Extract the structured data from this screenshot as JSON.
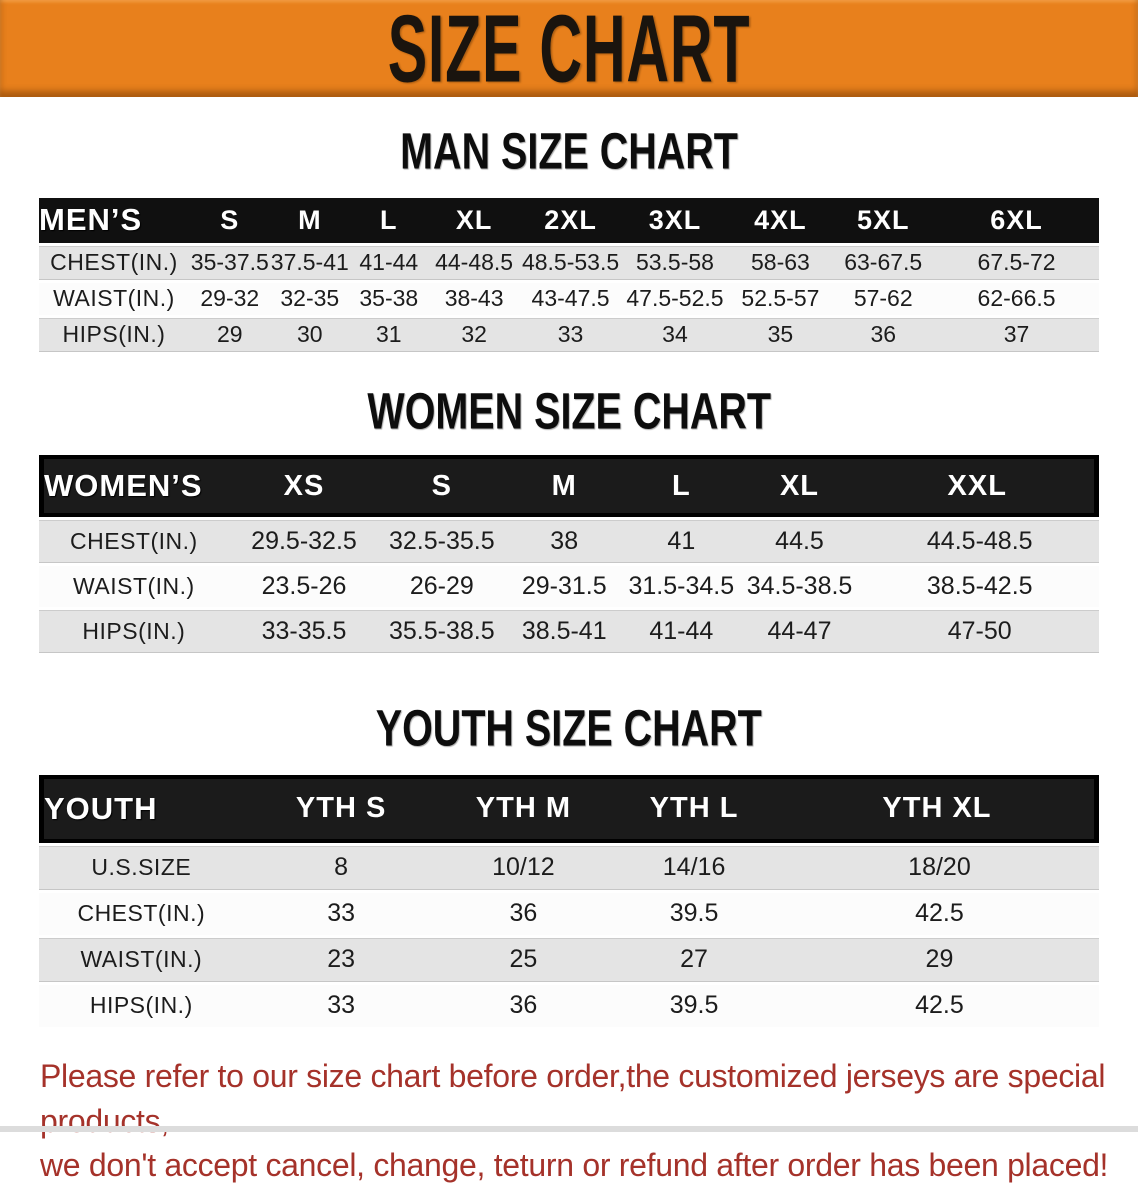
{
  "banner": {
    "title": "SIZE CHART"
  },
  "colors": {
    "banner_orange": "#E8801C",
    "table_header_black": "#101010",
    "outlined_header_black": "#1B1B1B",
    "row_gray": "#E4E4E4",
    "row_white": "#FCFCFC",
    "disclaimer_red": "#A5322A"
  },
  "sections": [
    {
      "id": "men",
      "heading": "MAN SIZE CHART",
      "corner": "MEN’S",
      "columns": [
        "S",
        "M",
        "L",
        "XL",
        "2XL",
        "3XL",
        "4XL",
        "5XL",
        "6XL"
      ],
      "rows": [
        {
          "label": "CHEST(IN.)",
          "values": [
            "35-37.5",
            "37.5-41",
            "41-44",
            "44-48.5",
            "48.5-53.5",
            "53.5-58",
            "58-63",
            "63-67.5",
            "67.5-72"
          ]
        },
        {
          "label": "WAIST(IN.)",
          "values": [
            "29-32",
            "32-35",
            "35-38",
            "38-43",
            "43-47.5",
            "47.5-52.5",
            "52.5-57",
            "57-62",
            "62-66.5"
          ]
        },
        {
          "label": "HIPS(IN.)",
          "values": [
            "29",
            "30",
            "31",
            "32",
            "33",
            "34",
            "35",
            "36",
            "37"
          ]
        }
      ]
    },
    {
      "id": "women",
      "heading": "WOMEN SIZE CHART",
      "corner": "WOMEN’S",
      "columns": [
        "XS",
        "S",
        "M",
        "L",
        "XL",
        "XXL"
      ],
      "rows": [
        {
          "label": "CHEST(IN.)",
          "values": [
            "29.5-32.5",
            "32.5-35.5",
            "38",
            "41",
            "44.5",
            "44.5-48.5"
          ]
        },
        {
          "label": "WAIST(IN.)",
          "values": [
            "23.5-26",
            "26-29",
            "29-31.5",
            "31.5-34.5",
            "34.5-38.5",
            "38.5-42.5"
          ]
        },
        {
          "label": "HIPS(IN.)",
          "values": [
            "33-35.5",
            "35.5-38.5",
            "38.5-41",
            "41-44",
            "44-47",
            "47-50"
          ]
        }
      ]
    },
    {
      "id": "youth",
      "heading": "YOUTH SIZE CHART",
      "corner": "YOUTH",
      "columns": [
        "YTH S",
        "YTH M",
        "YTH L",
        "YTH XL"
      ],
      "rows": [
        {
          "label": "U.S.SIZE",
          "values": [
            "8",
            "10/12",
            "14/16",
            "18/20"
          ]
        },
        {
          "label": "CHEST(IN.)",
          "values": [
            "33",
            "36",
            "39.5",
            "42.5"
          ]
        },
        {
          "label": "WAIST(IN.)",
          "values": [
            "23",
            "25",
            "27",
            "29"
          ]
        },
        {
          "label": "HIPS(IN.)",
          "values": [
            "33",
            "36",
            "39.5",
            "42.5"
          ]
        }
      ]
    }
  ],
  "disclaimer": {
    "line1": "Please refer to our size chart before order,the customized jerseys are special products,",
    "line2": "we don't accept cancel, change, teturn or refund after order has been placed!"
  }
}
